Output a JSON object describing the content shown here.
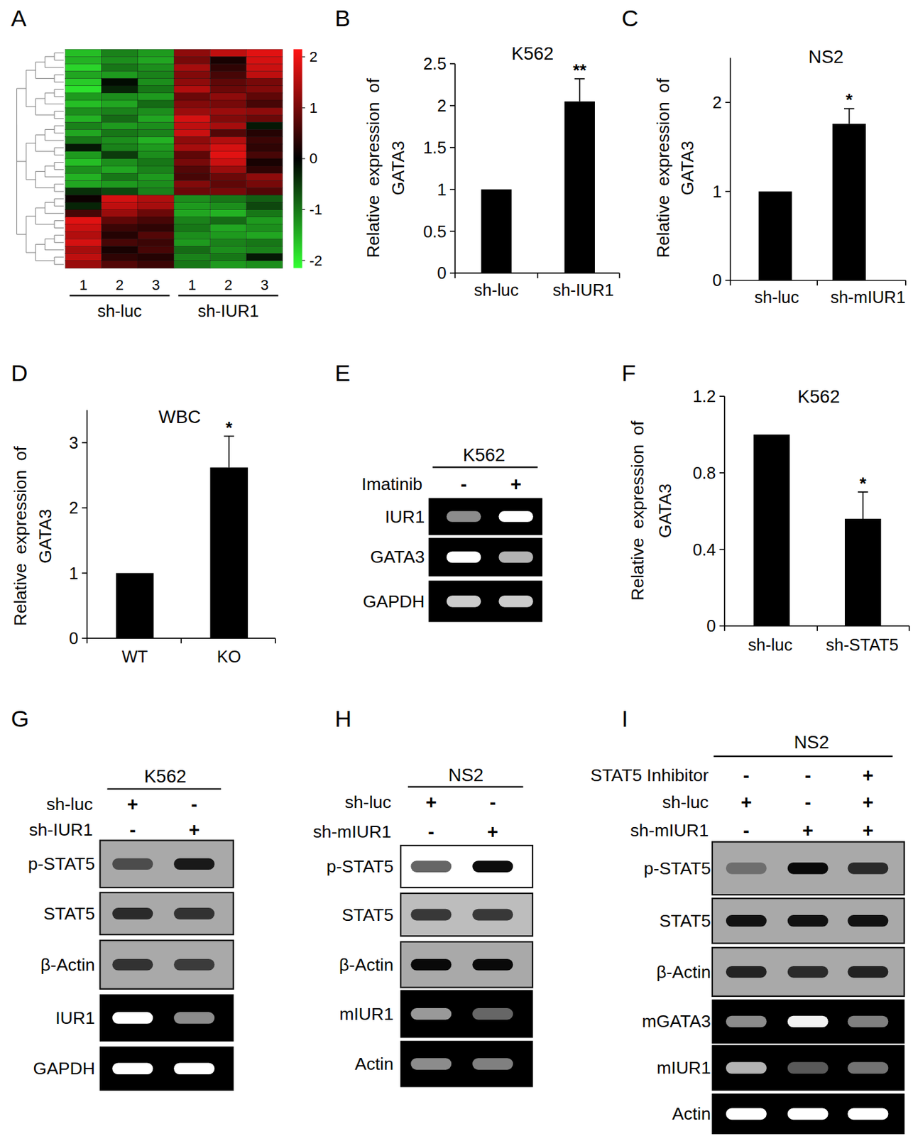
{
  "panel_labels": [
    "A",
    "B",
    "C",
    "D",
    "E",
    "F",
    "G",
    "H",
    "I"
  ],
  "chart_data": [
    {
      "type": "heatmap",
      "categories": [
        "1",
        "2",
        "3",
        "1",
        "2",
        "3"
      ],
      "groups": [
        "sh-luc",
        "sh-IUR1"
      ],
      "cells": [
        [
          -1.6,
          -1.1,
          -1.3,
          1.2,
          1.6,
          1.9
        ],
        [
          -1.5,
          -1.2,
          -1.4,
          1.0,
          0.2,
          1.8
        ],
        [
          -1.8,
          -1.0,
          -1.2,
          1.4,
          0.4,
          1.7
        ],
        [
          -1.4,
          -1.3,
          -1.1,
          1.1,
          0.6,
          1.6
        ],
        [
          -1.7,
          -0.1,
          -1.2,
          1.2,
          0.8,
          1.0
        ],
        [
          -1.9,
          -0.3,
          -1.0,
          1.5,
          0.9,
          1.1
        ],
        [
          -1.3,
          -1.2,
          -1.3,
          0.9,
          1.2,
          0.8
        ],
        [
          -1.6,
          -1.4,
          -0.9,
          1.1,
          1.0,
          0.6
        ],
        [
          -1.2,
          -1.1,
          -1.2,
          1.3,
          1.3,
          1.2
        ],
        [
          -1.5,
          -0.9,
          -1.4,
          1.8,
          1.1,
          0.9
        ],
        [
          -1.1,
          -1.3,
          -1.2,
          1.6,
          1.4,
          -0.2
        ],
        [
          -1.4,
          -1.0,
          -1.1,
          1.7,
          0.7,
          0.3
        ],
        [
          -1.0,
          -1.2,
          -1.5,
          1.2,
          1.5,
          0.5
        ],
        [
          -0.2,
          -1.1,
          -1.3,
          1.4,
          1.8,
          0.4
        ],
        [
          -1.3,
          -0.5,
          -1.2,
          0.8,
          1.9,
          0.6
        ],
        [
          -1.6,
          -1.2,
          -1.0,
          1.0,
          1.7,
          0.2
        ],
        [
          -1.2,
          -1.4,
          -1.1,
          0.7,
          1.3,
          0.4
        ],
        [
          -1.5,
          -1.0,
          -1.3,
          0.6,
          0.9,
          1.2
        ],
        [
          -1.4,
          -1.3,
          -1.2,
          1.1,
          0.8,
          1.0
        ],
        [
          -0.4,
          -0.6,
          -1.1,
          0.9,
          1.0,
          0.7
        ],
        [
          0.1,
          1.8,
          1.5,
          -1.2,
          -1.0,
          -0.8
        ],
        [
          -0.3,
          1.6,
          1.4,
          -1.3,
          -1.2,
          -0.6
        ],
        [
          0.6,
          1.3,
          0.9,
          -1.4,
          -1.5,
          -1.0
        ],
        [
          1.9,
          0.8,
          0.6,
          -1.1,
          -0.9,
          -1.3
        ],
        [
          1.7,
          0.5,
          0.4,
          -1.0,
          -1.4,
          -1.2
        ],
        [
          1.5,
          0.3,
          0.7,
          -1.2,
          -1.3,
          -1.4
        ],
        [
          1.8,
          0.6,
          0.5,
          -1.3,
          -1.1,
          -1.0
        ],
        [
          1.4,
          0.2,
          0.6,
          -0.9,
          -1.2,
          -1.1
        ],
        [
          1.6,
          0.4,
          0.3,
          -1.1,
          -1.0,
          -0.2
        ],
        [
          1.3,
          0.7,
          0.5,
          -1.0,
          -1.3,
          -1.2
        ]
      ],
      "color_range": [
        -2.15,
        2.15
      ],
      "color_ticks": [
        2,
        1,
        0,
        -1,
        -2
      ]
    },
    {
      "type": "bar",
      "title": "K562",
      "y_label": [
        "Relative expression of",
        "GATA3"
      ],
      "categories": [
        "sh-luc",
        "sh-IUR1"
      ],
      "values": [
        1,
        2.05
      ],
      "errors": [
        null,
        0.27
      ],
      "significance": [
        null,
        "**"
      ],
      "color": "#000000",
      "ylim": [
        0,
        2.5
      ],
      "yticks": [
        0,
        0.5,
        1,
        1.5,
        2,
        2.5
      ]
    },
    {
      "type": "bar",
      "title": "NS2",
      "y_label": [
        "Relative expression of",
        "GATA3"
      ],
      "categories": [
        "sh-luc",
        "sh-mIUR1"
      ],
      "values": [
        1,
        1.76
      ],
      "errors": [
        null,
        0.17
      ],
      "significance": [
        null,
        "*"
      ],
      "color": "#000000",
      "ylim": [
        0,
        2.5
      ],
      "yticks": [
        0,
        1,
        2
      ]
    },
    {
      "type": "bar",
      "title": "WBC",
      "y_label": [
        "Relative expression of",
        "GATA3"
      ],
      "categories": [
        "WT",
        "KO"
      ],
      "values": [
        1,
        2.62
      ],
      "errors": [
        null,
        0.48
      ],
      "significance": [
        null,
        "*"
      ],
      "color": "#000000",
      "ylim": [
        0,
        3.5
      ],
      "yticks": [
        0,
        1,
        2,
        3
      ]
    },
    {
      "type": "bar",
      "title": "K562",
      "y_label": [
        "Relative expression of",
        "GATA3"
      ],
      "categories": [
        "sh-luc",
        "sh-STAT5"
      ],
      "values": [
        1,
        0.56
      ],
      "errors": [
        null,
        0.14
      ],
      "significance": [
        null,
        "*"
      ],
      "color": "#000000",
      "ylim": [
        0,
        1.2
      ],
      "yticks": [
        0,
        0.4,
        0.8,
        1.2
      ]
    }
  ],
  "blots": [
    {
      "title": "K562",
      "conditions": [
        {
          "name": "Imatinib",
          "lanes": [
            "-",
            "+"
          ]
        }
      ],
      "rows": [
        {
          "name": "IUR1",
          "color": "#000000",
          "bands": [
            0.55,
            1
          ]
        },
        {
          "name": "GATA3",
          "color": "#000000",
          "bands": [
            1,
            0.7
          ]
        },
        {
          "name": "GAPDH",
          "color": "#000000",
          "bands": [
            0.8,
            0.8
          ]
        }
      ]
    },
    {
      "title": "K562",
      "conditions": [
        {
          "name": "sh-luc",
          "lanes": [
            "+",
            "-"
          ]
        },
        {
          "name": "sh-IUR1",
          "lanes": [
            "-",
            "+"
          ]
        }
      ],
      "rows": [
        {
          "name": "p-STAT5",
          "color": "#a9a9a9",
          "bands": [
            0.55,
            0.85
          ]
        },
        {
          "name": "STAT5",
          "color": "#a9a9a9",
          "bands": [
            0.75,
            0.7
          ]
        },
        {
          "name": "β-Actin",
          "color": "#a9a9a9",
          "bands": [
            0.7,
            0.65
          ]
        },
        {
          "name": "IUR1",
          "color": "#000000",
          "bands": [
            1,
            0.55
          ]
        },
        {
          "name": "GAPDH",
          "color": "#000000",
          "bands": [
            1,
            1
          ]
        }
      ]
    },
    {
      "title": "NS2",
      "conditions": [
        {
          "name": "sh-luc",
          "lanes": [
            "+",
            "-"
          ]
        },
        {
          "name": "sh-mIUR1",
          "lanes": [
            "-",
            "+"
          ]
        }
      ],
      "rows": [
        {
          "name": "p-STAT5",
          "color": "#ffffff",
          "bands": [
            0.6,
            0.95
          ]
        },
        {
          "name": "STAT5",
          "color": "#bdbdbd",
          "bands": [
            0.7,
            0.7
          ]
        },
        {
          "name": "β-Actin",
          "color": "#a9a9a9",
          "bands": [
            0.95,
            0.95
          ]
        },
        {
          "name": "mIUR1",
          "color": "#000000",
          "bands": [
            0.6,
            0.4
          ]
        },
        {
          "name": "Actin",
          "color": "#000000",
          "bands": [
            0.55,
            0.5
          ]
        }
      ]
    },
    {
      "title": "NS2",
      "conditions": [
        {
          "name": "STAT5 Inhibitor",
          "lanes": [
            "-",
            "-",
            "+"
          ]
        },
        {
          "name": "sh-luc",
          "lanes": [
            "+",
            "-",
            "+"
          ]
        },
        {
          "name": "sh-mIUR1",
          "lanes": [
            "-",
            "+",
            "+"
          ]
        }
      ],
      "rows": [
        {
          "name": "p-STAT5",
          "color": "#a9a9a9",
          "bands": [
            0.35,
            0.95,
            0.75
          ]
        },
        {
          "name": "STAT5",
          "color": "#a9a9a9",
          "bands": [
            0.9,
            0.9,
            0.9
          ]
        },
        {
          "name": "β-Actin",
          "color": "#a9a9a9",
          "bands": [
            0.8,
            0.75,
            0.8
          ]
        },
        {
          "name": "mGATA3",
          "color": "#000000",
          "bands": [
            0.55,
            0.95,
            0.5
          ]
        },
        {
          "name": "mIUR1",
          "color": "#000000",
          "bands": [
            0.7,
            0.35,
            0.45
          ]
        },
        {
          "name": "Actin",
          "color": "#000000",
          "bands": [
            1,
            1,
            1
          ]
        }
      ]
    }
  ]
}
